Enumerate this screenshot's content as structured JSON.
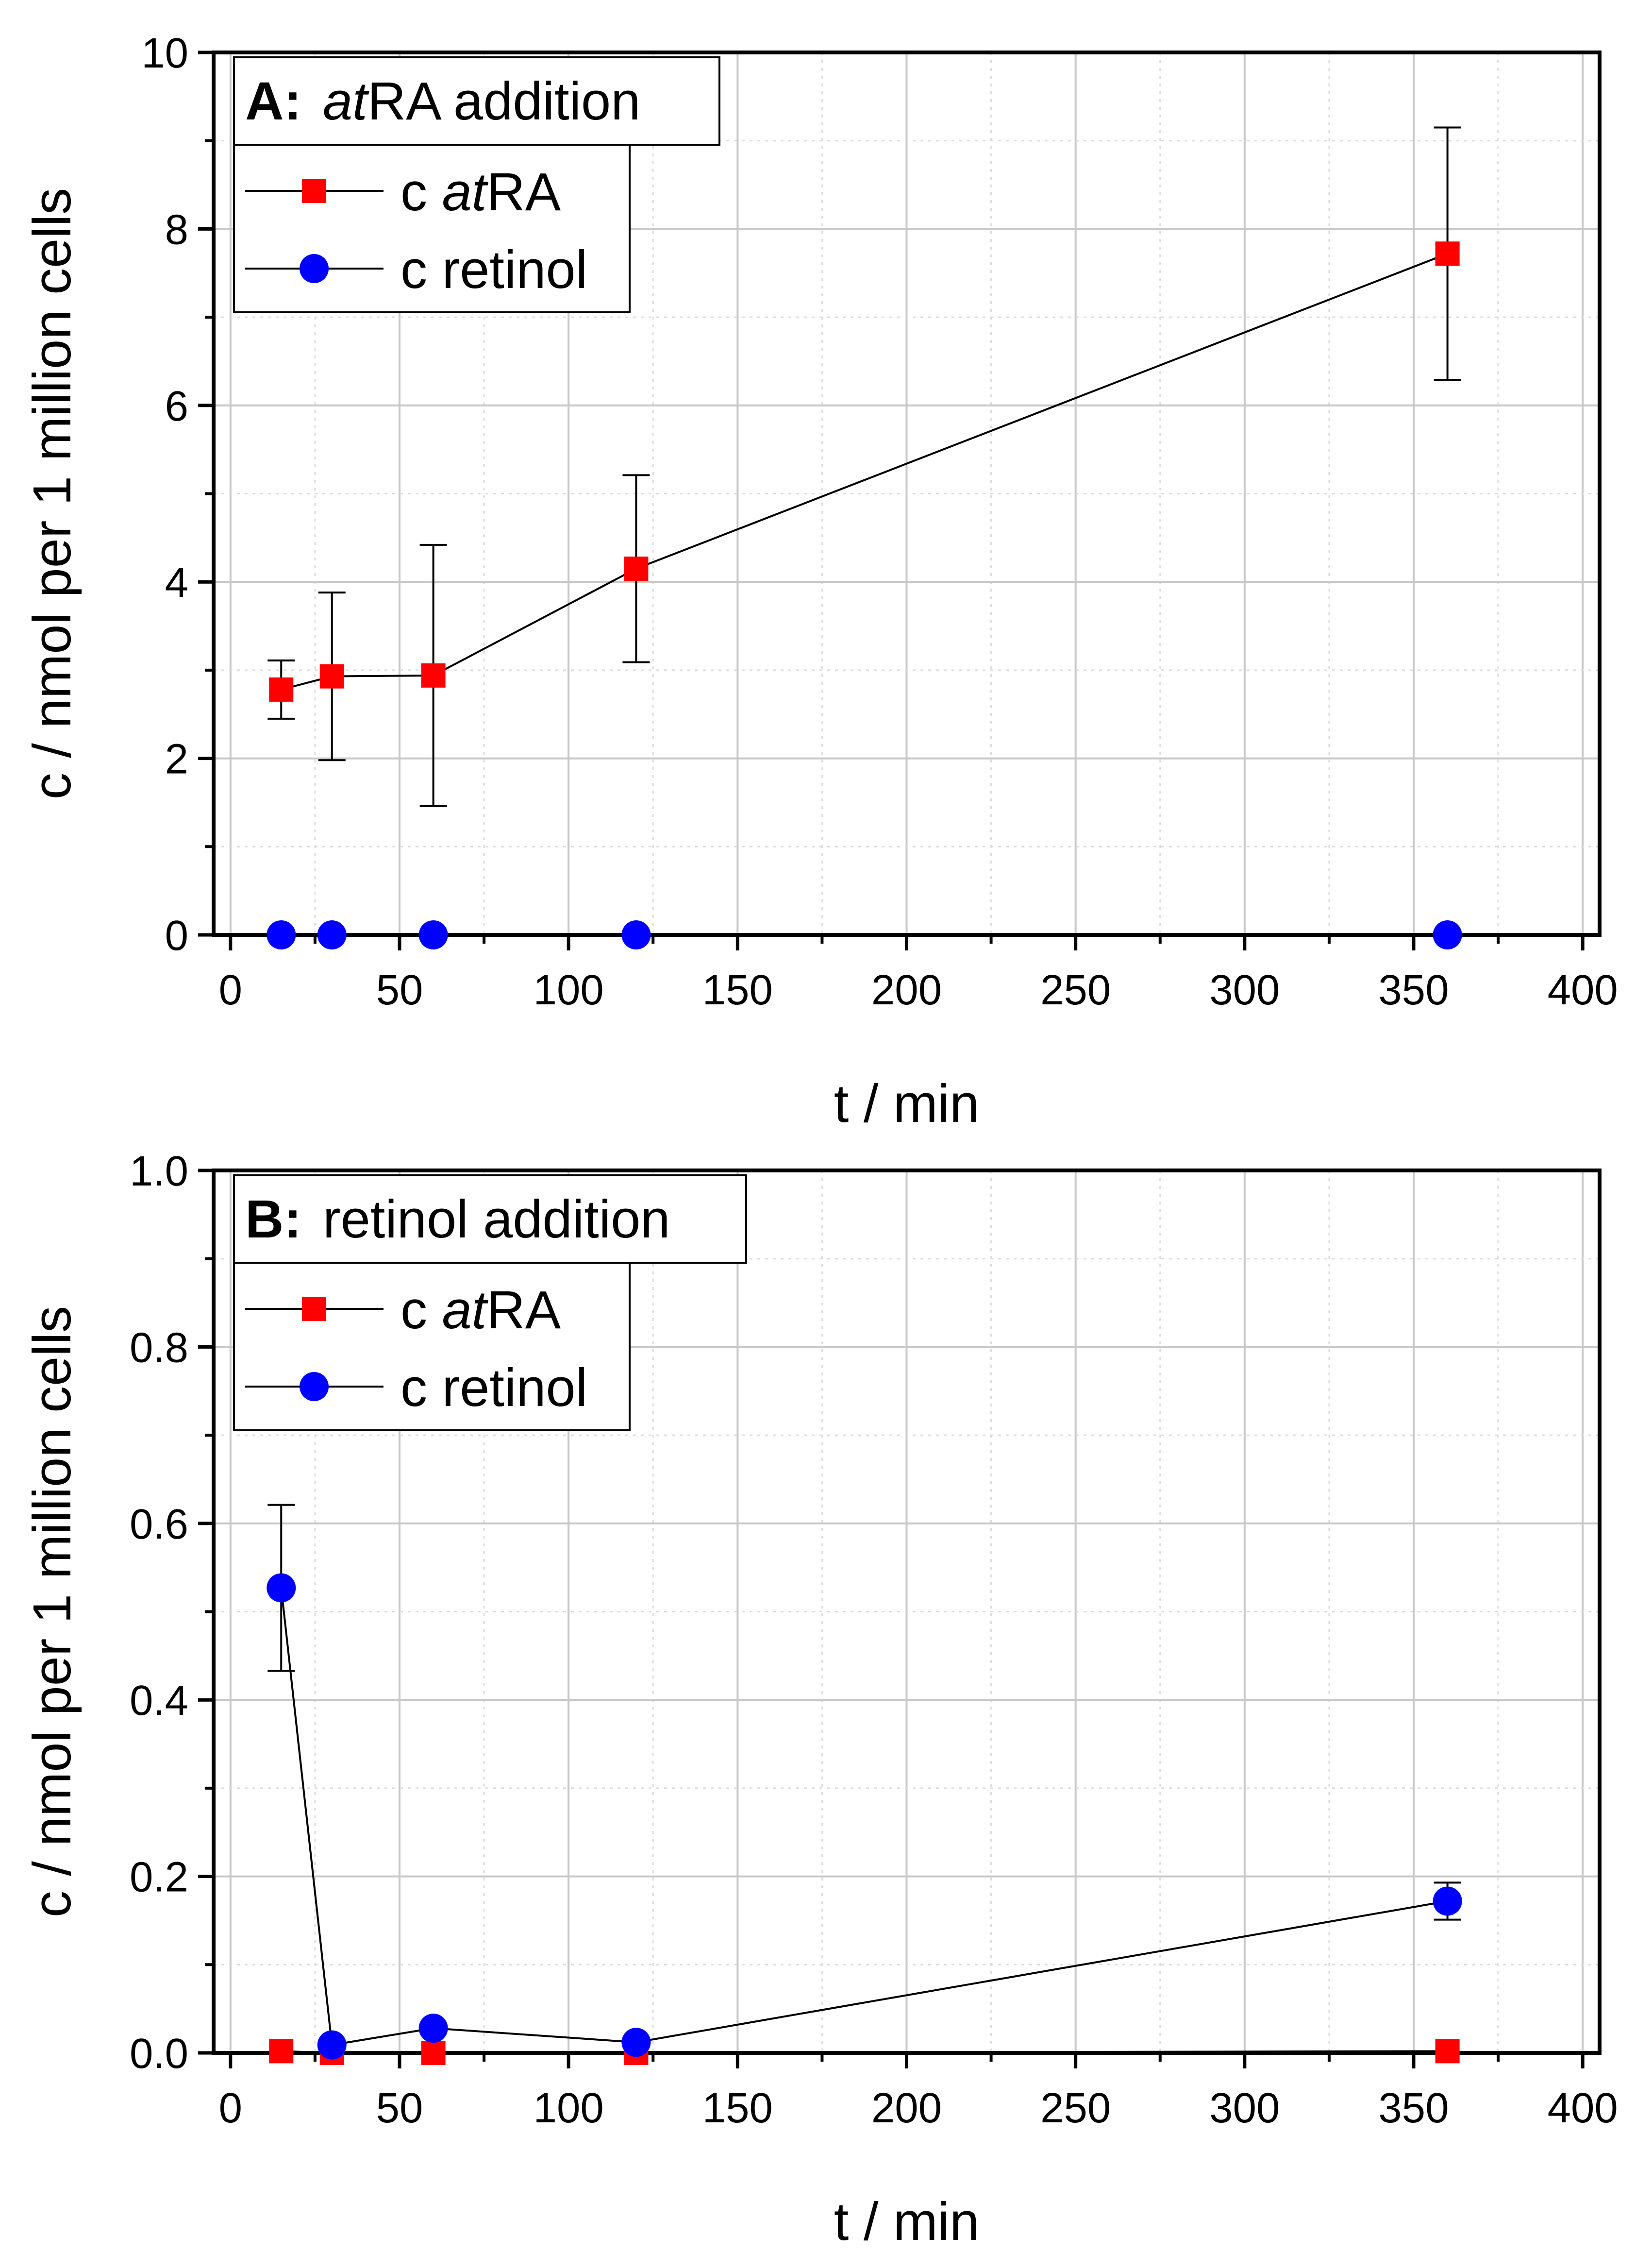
{
  "chart_data": [
    {
      "type": "line",
      "panel_label": "A:",
      "title": "atRA addition",
      "title_italic_prefix": "at",
      "title_rest": "RA addition",
      "xlabel": "t / min",
      "ylabel": "c / nmol per 1 million cells",
      "xlim": [
        -5,
        405
      ],
      "ylim": [
        0,
        10
      ],
      "xticks": [
        0,
        50,
        100,
        150,
        200,
        250,
        300,
        350,
        400
      ],
      "yticks": [
        0,
        2,
        4,
        6,
        8,
        10
      ],
      "xtick_labels": [
        "0",
        "50",
        "100",
        "150",
        "200",
        "250",
        "300",
        "350",
        "400"
      ],
      "ytick_labels": [
        "0",
        "2",
        "4",
        "6",
        "8",
        "10"
      ],
      "grid": true,
      "legend_position": "top-left",
      "x": [
        15,
        30,
        60,
        120,
        360
      ],
      "series": [
        {
          "name": "c atRA",
          "name_prefix": "c ",
          "name_italic": "at",
          "name_rest": "RA",
          "marker": "square",
          "color": "#ff0000",
          "values": [
            2.78,
            2.93,
            2.94,
            4.15,
            7.72
          ],
          "error": [
            0.33,
            0.95,
            1.48,
            1.06,
            1.43
          ]
        },
        {
          "name": "c retinol",
          "name_prefix": "c retinol",
          "name_italic": "",
          "name_rest": "",
          "marker": "circle",
          "color": "#0000ff",
          "values": [
            0,
            0,
            0,
            0,
            0
          ],
          "error": [
            0,
            0,
            0,
            0,
            0
          ]
        }
      ]
    },
    {
      "type": "line",
      "panel_label": "B:",
      "title": "retinol addition",
      "title_italic_prefix": "",
      "title_rest": "retinol addition",
      "xlabel": "t / min",
      "ylabel": "c / nmol per 1 million cells",
      "xlim": [
        -5,
        405
      ],
      "ylim": [
        0,
        1.0
      ],
      "xticks": [
        0,
        50,
        100,
        150,
        200,
        250,
        300,
        350,
        400
      ],
      "yticks": [
        0,
        0.2,
        0.4,
        0.6,
        0.8,
        1.0
      ],
      "xtick_labels": [
        "0",
        "50",
        "100",
        "150",
        "200",
        "250",
        "300",
        "350",
        "400"
      ],
      "ytick_labels": [
        "0.0",
        "0.2",
        "0.4",
        "0.6",
        "0.8",
        "1.0"
      ],
      "grid": true,
      "legend_position": "top-left",
      "x": [
        15,
        30,
        60,
        120,
        360
      ],
      "series": [
        {
          "name": "c atRA",
          "name_prefix": "c ",
          "name_italic": "at",
          "name_rest": "RA",
          "marker": "square",
          "color": "#ff0000",
          "values": [
            0.002,
            0.0,
            0.0,
            0.0,
            0.002
          ],
          "error": [
            0,
            0,
            0,
            0,
            0
          ]
        },
        {
          "name": "c retinol",
          "name_prefix": "c retinol",
          "name_italic": "",
          "name_rest": "",
          "marker": "circle",
          "color": "#0000ff",
          "values": [
            0.527,
            0.009,
            0.028,
            0.012,
            0.172
          ],
          "error": [
            0.094,
            0,
            0,
            0,
            0.021
          ]
        }
      ]
    }
  ]
}
